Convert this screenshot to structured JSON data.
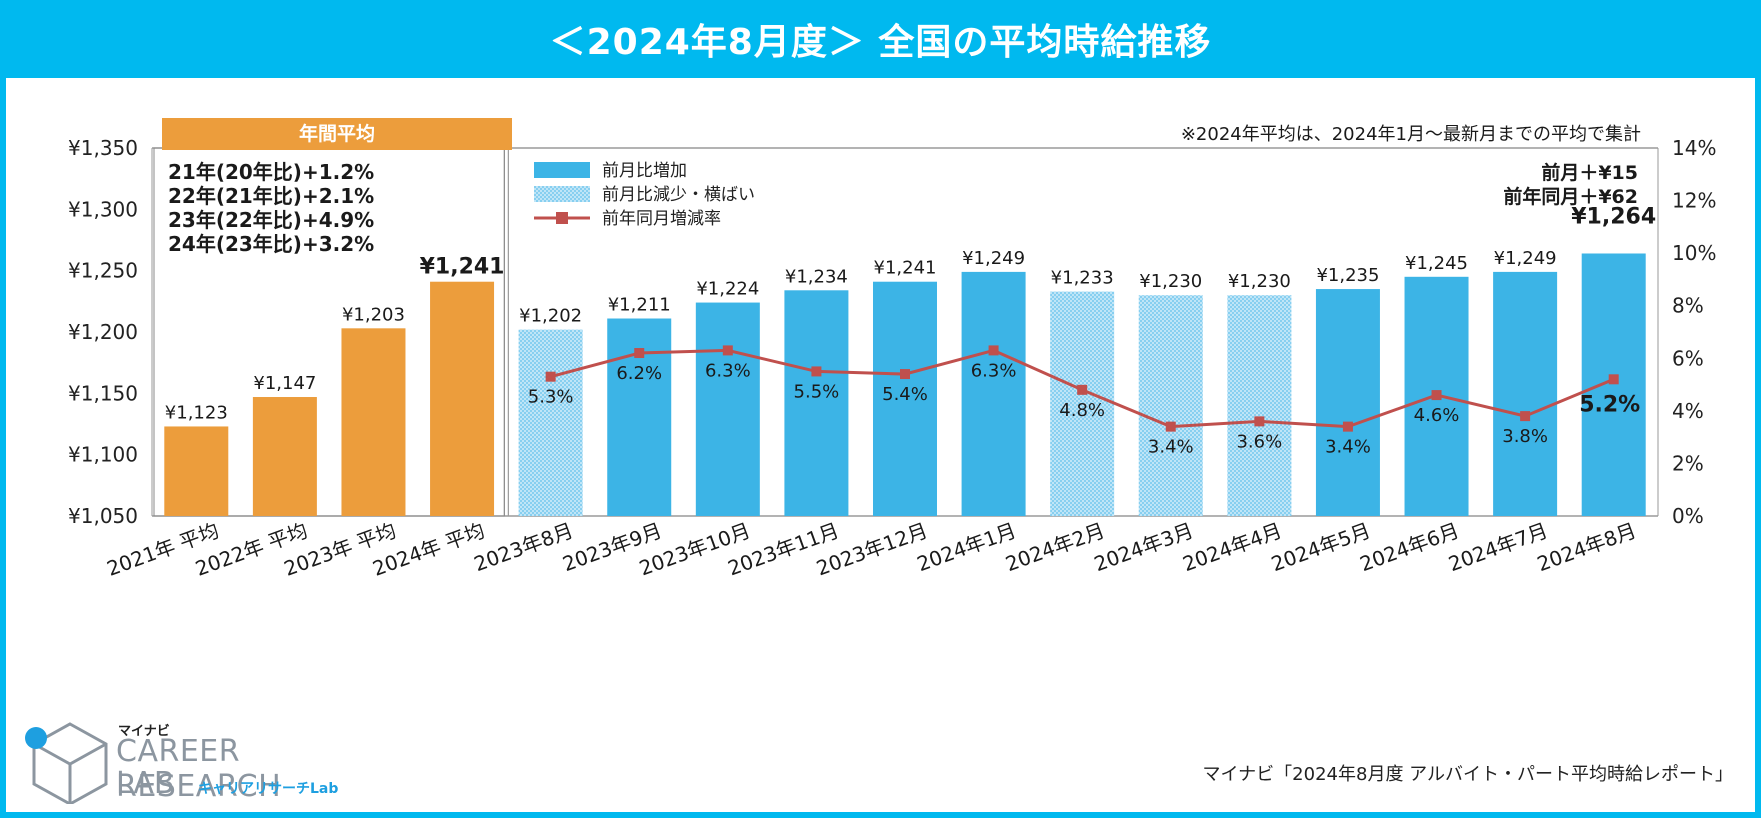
{
  "title": "＜2024年8月度＞ 全国の平均時給推移",
  "note": "※2024年平均は、2024年1月～最新月までの平均で集計",
  "annual_header": "年間平均",
  "annual_notes": [
    "21年(20年比)+1.2%",
    "22年(21年比)+2.1%",
    "23年(22年比)+4.9%",
    "24年(23年比)+3.2%"
  ],
  "latest": {
    "mom": "前月＋¥15",
    "yoy": "前年同月＋¥62"
  },
  "legend": {
    "increase": "前月比増加",
    "decrease": "前月比減少・横ばい",
    "yoy_rate": "前年同月増減率"
  },
  "logo": {
    "brand": "マイナビ",
    "line1": "CAREER RESEARCH",
    "line2": "LAB",
    "sub": "キャリアリサーチLab"
  },
  "source": "マイナビ「2024年8月度 アルバイト・パート平均時給レポート」",
  "colors": {
    "frame": "#00b9ef",
    "annual_bar": "#ec9d3c",
    "increase_bar": "#3cb4e6",
    "decrease_bar": "#a9daf3",
    "line": "#c0504d"
  },
  "chart_data": {
    "type": "bar",
    "categories": [
      "2021年 平均",
      "2022年 平均",
      "2023年 平均",
      "2024年 平均",
      "2023年8月",
      "2023年9月",
      "2023年10月",
      "2023年11月",
      "2023年12月",
      "2024年1月",
      "2024年2月",
      "2024年3月",
      "2024年4月",
      "2024年5月",
      "2024年6月",
      "2024年7月",
      "2024年8月"
    ],
    "kinds": [
      "annual",
      "annual",
      "annual",
      "annual",
      "decrease",
      "increase",
      "increase",
      "increase",
      "increase",
      "increase",
      "decrease",
      "decrease",
      "decrease",
      "increase",
      "increase",
      "increase",
      "increase"
    ],
    "values": [
      1123,
      1147,
      1203,
      1241,
      1202,
      1211,
      1224,
      1234,
      1241,
      1249,
      1233,
      1230,
      1230,
      1235,
      1245,
      1249,
      1264
    ],
    "value_labels": [
      "¥1,123",
      "¥1,147",
      "¥1,203",
      "¥1,241",
      "¥1,202",
      "¥1,211",
      "¥1,224",
      "¥1,234",
      "¥1,241",
      "¥1,249",
      "¥1,233",
      "¥1,230",
      "¥1,230",
      "¥1,235",
      "¥1,245",
      "¥1,249",
      "¥1,264"
    ],
    "ylim": [
      1050,
      1350
    ],
    "yticks": [
      "¥1,050",
      "¥1,100",
      "¥1,150",
      "¥1,200",
      "¥1,250",
      "¥1,300",
      "¥1,350"
    ],
    "y2lim": [
      0,
      14
    ],
    "y2ticks": [
      "0%",
      "2%",
      "4%",
      "6%",
      "8%",
      "10%",
      "12%",
      "14%"
    ],
    "line_series": {
      "name": "前年同月増減率",
      "values": [
        5.3,
        6.2,
        6.3,
        5.5,
        5.4,
        6.3,
        4.8,
        3.4,
        3.6,
        3.4,
        4.6,
        3.8,
        5.2
      ],
      "labels": [
        "5.3%",
        "6.2%",
        "6.3%",
        "5.5%",
        "5.4%",
        "6.3%",
        "4.8%",
        "3.4%",
        "3.6%",
        "3.4%",
        "4.6%",
        "3.8%",
        "5.2%"
      ]
    }
  }
}
